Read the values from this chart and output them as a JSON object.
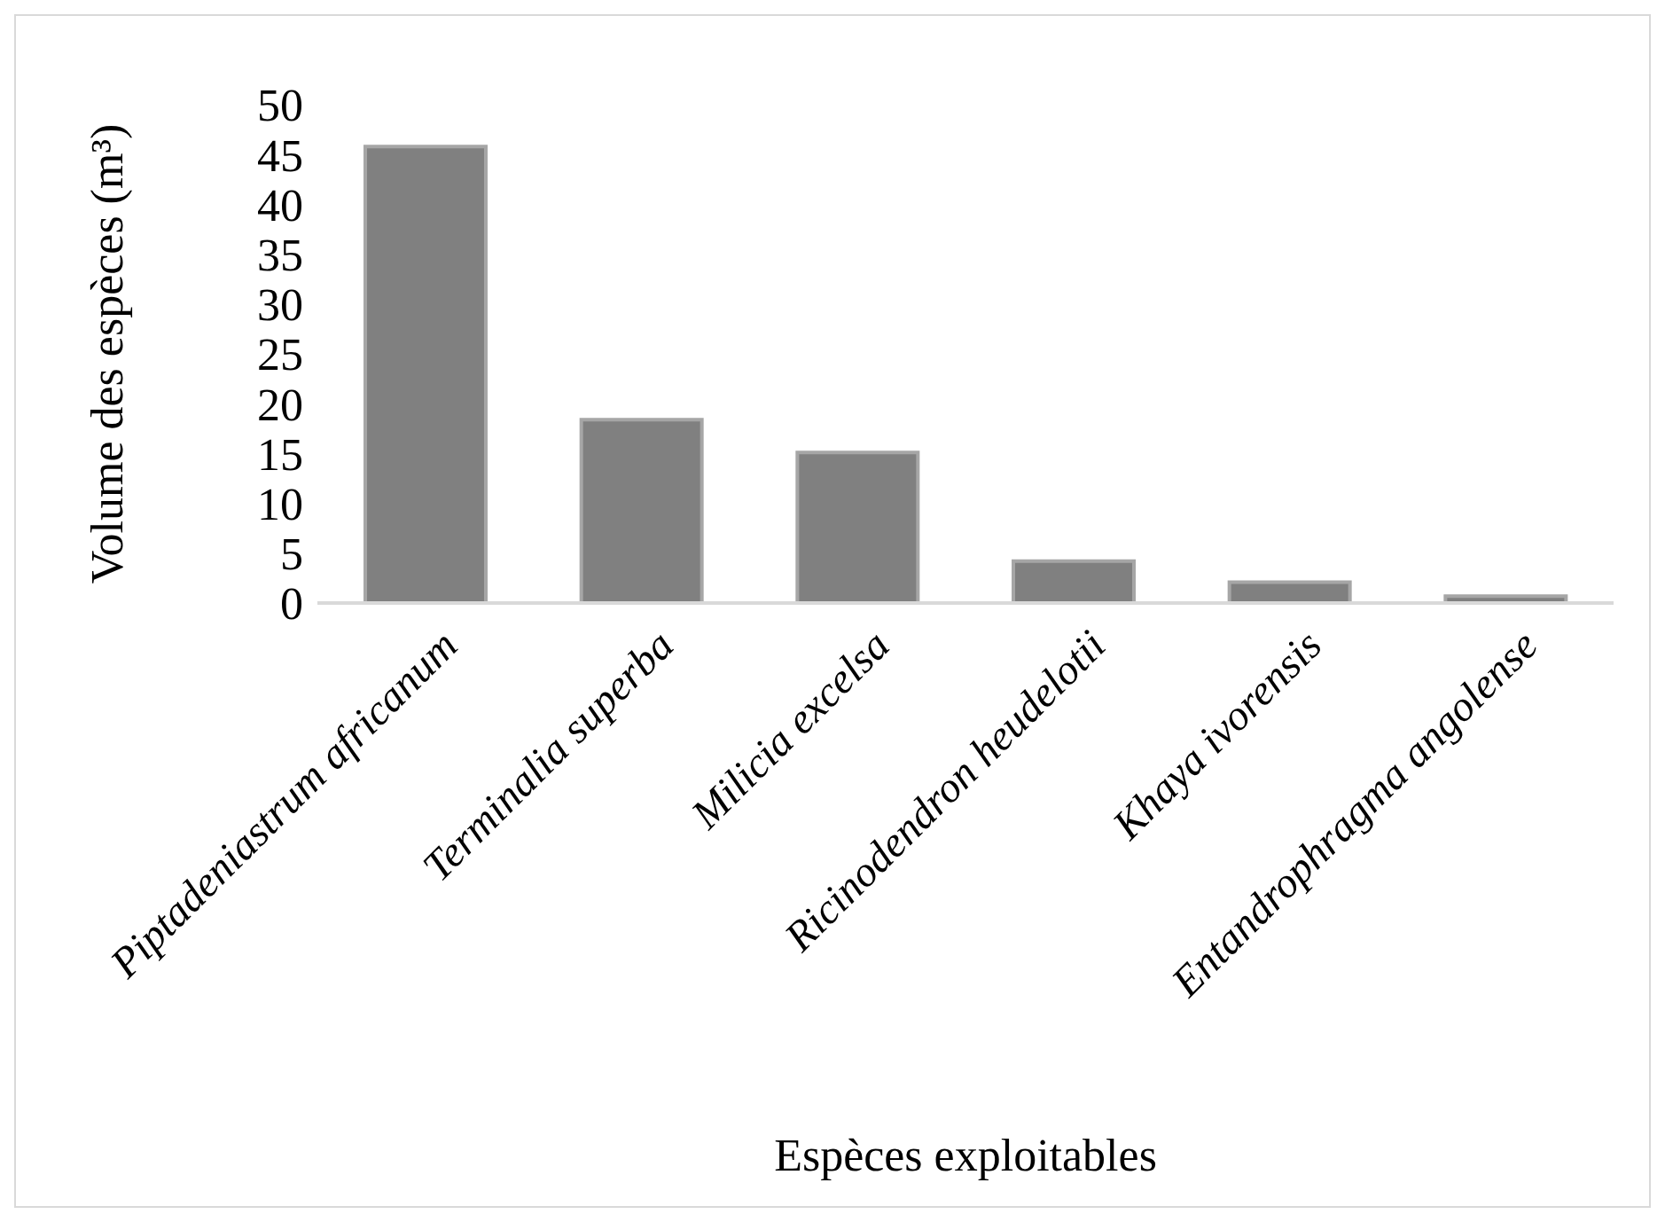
{
  "chart_data": {
    "type": "bar",
    "xlabel": "Espèces exploitables",
    "ylabel": "Volume des espèces (m³)",
    "categories": [
      "Piptadeniastrum africanum",
      "Terminalia superba",
      "Milicia excelsa",
      "Ricinodendron heudelotii",
      "Khaya ivorensis",
      "Entandrophragma angolense"
    ],
    "values": [
      45.8,
      18.4,
      15.1,
      4.2,
      2.1,
      0.7
    ],
    "color": "#808080",
    "ylim": [
      0,
      50
    ],
    "yticks": [
      0,
      5,
      10,
      15,
      20,
      25,
      30,
      35,
      40,
      45,
      50
    ],
    "grid": false
  }
}
